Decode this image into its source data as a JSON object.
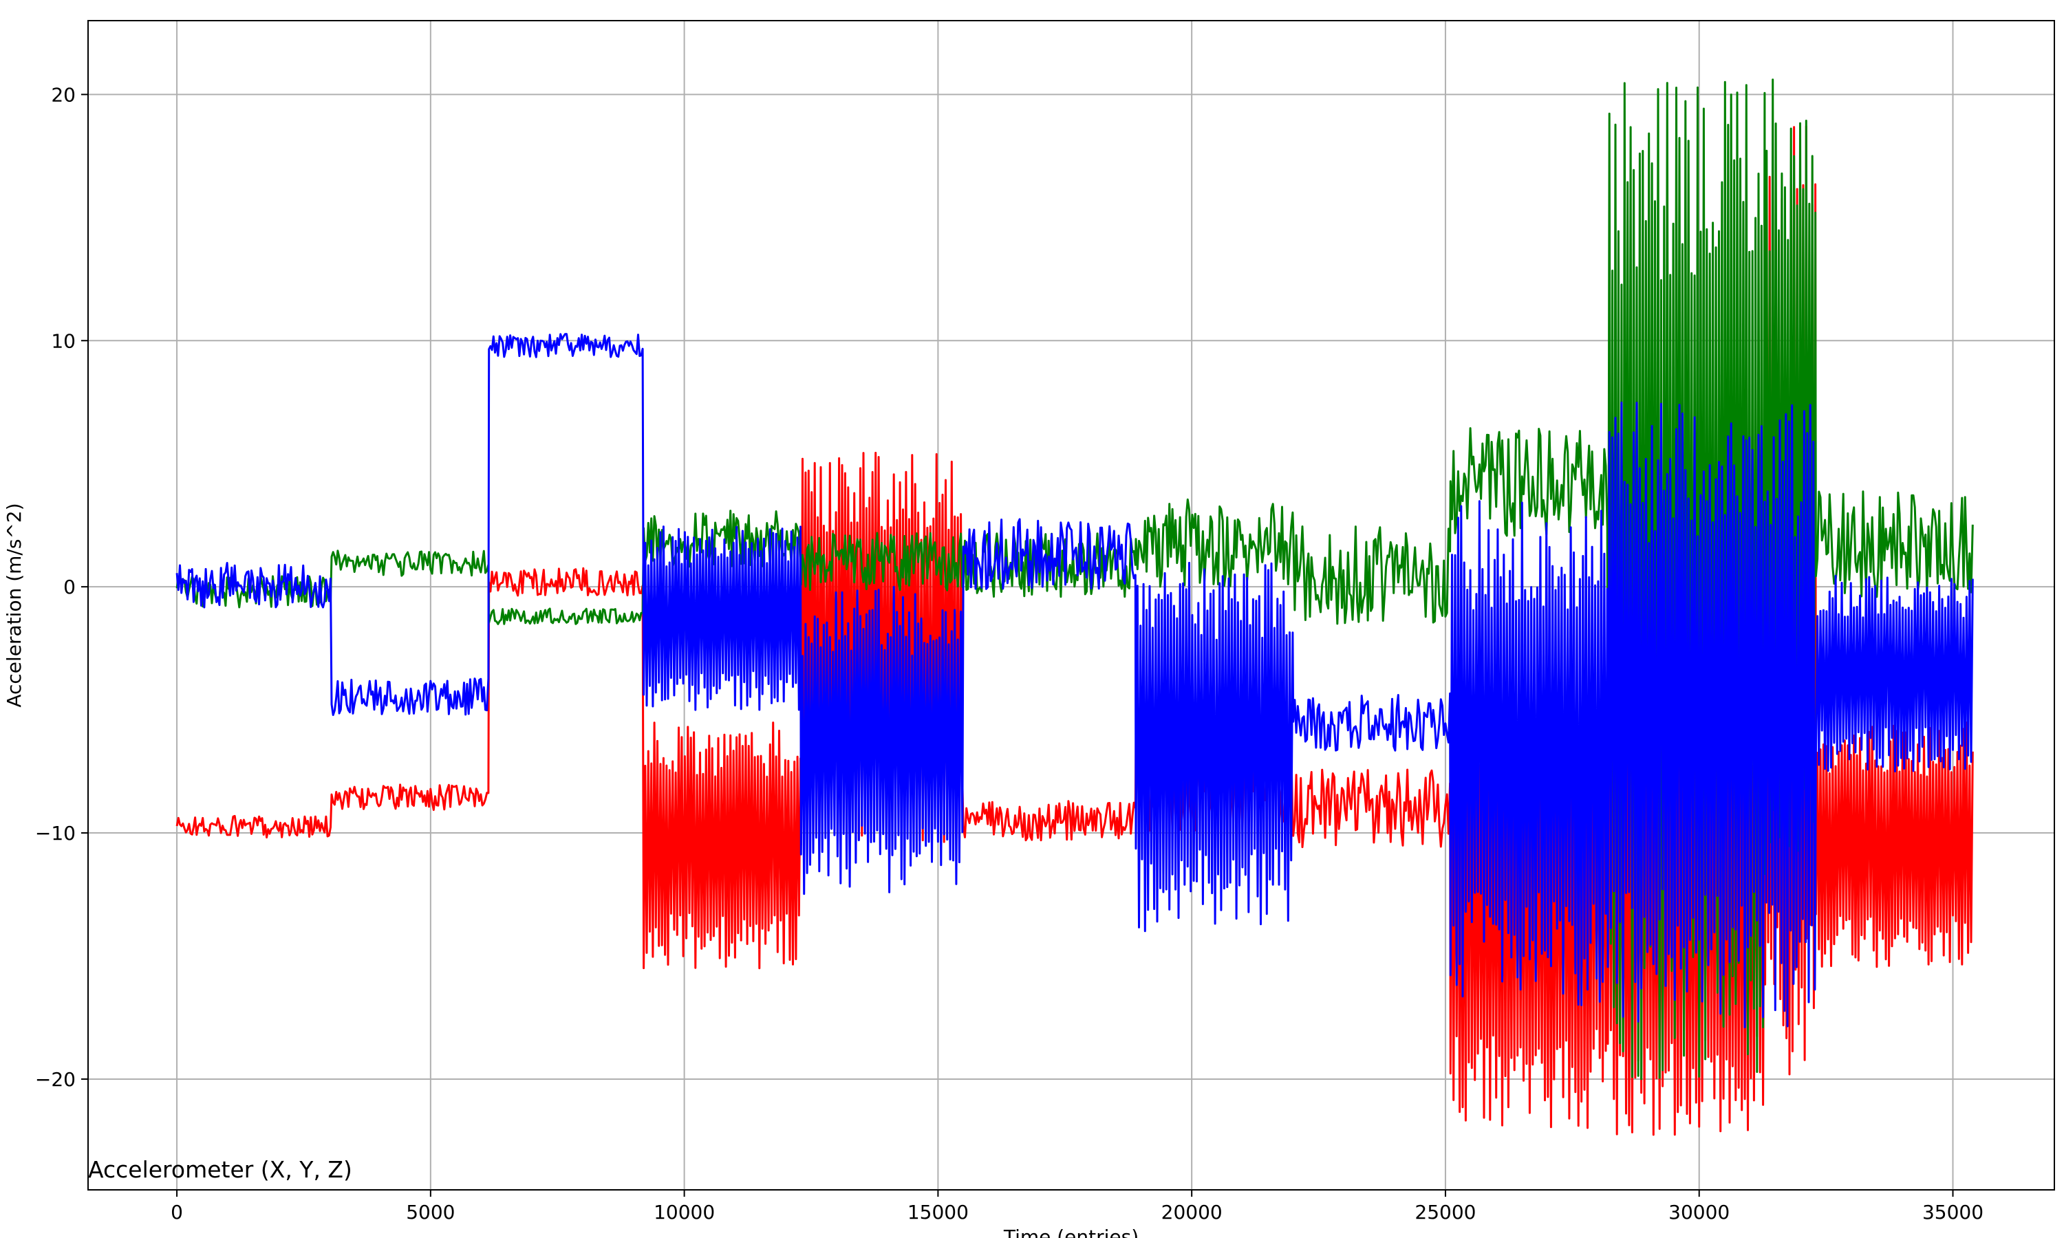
{
  "chart_data": {
    "type": "line",
    "title": "",
    "annotation": "Accelerometer (X, Y, Z)",
    "xlabel": "Time (entries)",
    "ylabel": "Acceleration (m/s^2)",
    "xlim": [
      -1750,
      37000
    ],
    "ylim": [
      -24.5,
      23
    ],
    "xticks": [
      0,
      5000,
      10000,
      15000,
      20000,
      25000,
      30000,
      35000
    ],
    "xtick_labels": [
      "0",
      "5000",
      "10000",
      "15000",
      "20000",
      "25000",
      "30000",
      "35000"
    ],
    "yticks": [
      -20,
      -10,
      0,
      10,
      20
    ],
    "ytick_labels": [
      "−20",
      "−10",
      "0",
      "10",
      "20"
    ],
    "grid": true,
    "series": [
      {
        "color": "#ff0000",
        "segments": [
          {
            "x_start": 0,
            "x_end": 3050,
            "low": -10.3,
            "high": -9.2,
            "spikes": 3
          },
          {
            "x_start": 3050,
            "x_end": 6150,
            "low": -9.2,
            "high": -7.9,
            "spikes": 3
          },
          {
            "x_start": 6150,
            "x_end": 9200,
            "low": -0.5,
            "high": 0.9,
            "spikes": 1
          },
          {
            "x_start": 9200,
            "x_end": 12300,
            "low": -15.5,
            "high": -5.5,
            "spikes": 3
          },
          {
            "x_start": 12300,
            "x_end": 15500,
            "low": -10.5,
            "high": 5.5,
            "spikes": 2
          },
          {
            "x_start": 15500,
            "x_end": 18900,
            "low": -10.5,
            "high": -8.5,
            "spikes": 2
          },
          {
            "x_start": 18900,
            "x_end": 22000,
            "low": -10.5,
            "high": -5.0,
            "spikes": 2
          },
          {
            "x_start": 22000,
            "x_end": 25100,
            "low": -11.0,
            "high": -7.0,
            "spikes": 3
          },
          {
            "x_start": 25100,
            "x_end": 28200,
            "low": -22.0,
            "high": -4.0,
            "spikes": 3
          },
          {
            "x_start": 28200,
            "x_end": 31300,
            "low": -22.3,
            "high": -3.0,
            "spikes": 2
          },
          {
            "x_start": 31300,
            "x_end": 32300,
            "low": -22.0,
            "high": 19.0,
            "spikes": 1
          },
          {
            "x_start": 32300,
            "x_end": 35400,
            "low": -15.5,
            "high": -5.5,
            "spikes": 3
          }
        ]
      },
      {
        "color": "#008000",
        "segments": [
          {
            "x_start": 0,
            "x_end": 3050,
            "low": -1.0,
            "high": 0.6,
            "spikes": 1
          },
          {
            "x_start": 3050,
            "x_end": 6150,
            "low": 0.3,
            "high": 1.6,
            "spikes": 1
          },
          {
            "x_start": 6150,
            "x_end": 9200,
            "low": -1.6,
            "high": -0.8,
            "spikes": 1
          },
          {
            "x_start": 9200,
            "x_end": 12300,
            "low": 0.5,
            "high": 3.5,
            "spikes": 2
          },
          {
            "x_start": 12300,
            "x_end": 15500,
            "low": -0.5,
            "high": 2.5,
            "spikes": 2
          },
          {
            "x_start": 15500,
            "x_end": 18900,
            "low": -0.8,
            "high": 2.5,
            "spikes": 2
          },
          {
            "x_start": 18900,
            "x_end": 22000,
            "low": -0.5,
            "high": 4.0,
            "spikes": 2
          },
          {
            "x_start": 22000,
            "x_end": 25100,
            "low": -2.0,
            "high": 3.0,
            "spikes": 2
          },
          {
            "x_start": 25100,
            "x_end": 28200,
            "low": 1.5,
            "high": 7.0,
            "spikes": 4
          },
          {
            "x_start": 28200,
            "x_end": 31300,
            "low": -20.0,
            "high": 21.0,
            "spikes": 3
          },
          {
            "x_start": 31300,
            "x_end": 32300,
            "low": -12.0,
            "high": 21.0,
            "spikes": 2
          },
          {
            "x_start": 32300,
            "x_end": 35400,
            "low": -1.0,
            "high": 4.5,
            "spikes": 2
          }
        ]
      },
      {
        "color": "#0000ff",
        "segments": [
          {
            "x_start": 0,
            "x_end": 3050,
            "low": -1.1,
            "high": 1.2,
            "spikes": 1
          },
          {
            "x_start": 3050,
            "x_end": 6150,
            "low": -5.4,
            "high": -3.5,
            "spikes": 1
          },
          {
            "x_start": 6150,
            "x_end": 9200,
            "low": 9.2,
            "high": 10.4,
            "spikes": 1
          },
          {
            "x_start": 9200,
            "x_end": 12300,
            "low": -5.0,
            "high": 2.5,
            "spikes": 2
          },
          {
            "x_start": 12300,
            "x_end": 15500,
            "low": -12.5,
            "high": 0.0,
            "spikes": 2
          },
          {
            "x_start": 15500,
            "x_end": 18900,
            "low": -0.5,
            "high": 3.2,
            "spikes": 2
          },
          {
            "x_start": 18900,
            "x_end": 22000,
            "low": -14.0,
            "high": 1.0,
            "spikes": 2
          },
          {
            "x_start": 22000,
            "x_end": 25100,
            "low": -7.0,
            "high": -4.0,
            "spikes": 2
          },
          {
            "x_start": 25100,
            "x_end": 28200,
            "low": -17.0,
            "high": 3.5,
            "spikes": 3
          },
          {
            "x_start": 28200,
            "x_end": 32300,
            "low": -18.0,
            "high": 7.5,
            "spikes": 3
          },
          {
            "x_start": 32300,
            "x_end": 35400,
            "low": -7.5,
            "high": 0.5,
            "spikes": 3
          }
        ]
      }
    ]
  }
}
